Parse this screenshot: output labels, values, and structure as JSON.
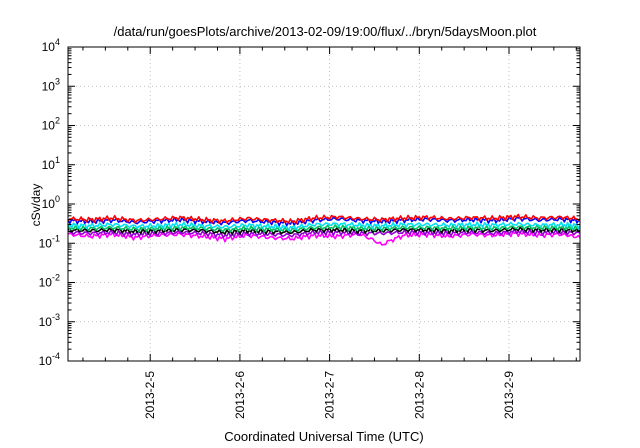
{
  "chart_data": {
    "type": "line",
    "title": "/data/run/goesPlots/archive/2013-02-09/19:00/flux/../bryn/5daysMoon.plot",
    "xlabel": "Coordinated Universal Time (UTC)",
    "ylabel": "cSv/day",
    "y_scale": "log",
    "ylim": [
      0.0001,
      10000
    ],
    "xlim": [
      "2013-02-04 02:00",
      "2013-02-09 19:00"
    ],
    "x_ticks": [
      "2013-2-5",
      "2013-2-6",
      "2013-2-7",
      "2013-2-8",
      "2013-2-9"
    ],
    "y_ticks": [
      {
        "base": "10",
        "exp": "-4",
        "value": 0.0001
      },
      {
        "base": "10",
        "exp": "-3",
        "value": 0.001
      },
      {
        "base": "10",
        "exp": "-2",
        "value": 0.01
      },
      {
        "base": "10",
        "exp": "-1",
        "value": 0.1
      },
      {
        "base": "10",
        "exp": "0",
        "value": 1
      },
      {
        "base": "10",
        "exp": "1",
        "value": 10
      },
      {
        "base": "10",
        "exp": "2",
        "value": 100
      },
      {
        "base": "10",
        "exp": "3",
        "value": 1000
      },
      {
        "base": "10",
        "exp": "4",
        "value": 10000
      }
    ],
    "grid": true,
    "legend": "none",
    "x_days": [
      0,
      0.25,
      0.5,
      0.75,
      1.0,
      1.25,
      1.5,
      1.75,
      2.0,
      2.25,
      2.5,
      2.75,
      3.0,
      3.25,
      3.5,
      3.75,
      4.0,
      4.25,
      4.5,
      4.75,
      5.0,
      5.25,
      5.5,
      5.7083
    ],
    "series": [
      {
        "color": "#ff0000",
        "values": [
          0.42,
          0.4,
          0.44,
          0.38,
          0.41,
          0.45,
          0.4,
          0.37,
          0.43,
          0.39,
          0.36,
          0.44,
          0.47,
          0.42,
          0.4,
          0.44,
          0.46,
          0.42,
          0.45,
          0.43,
          0.48,
          0.44,
          0.46,
          0.42
        ]
      },
      {
        "color": "#0000ff",
        "values": [
          0.38,
          0.36,
          0.39,
          0.34,
          0.37,
          0.4,
          0.36,
          0.33,
          0.38,
          0.35,
          0.32,
          0.39,
          0.42,
          0.38,
          0.36,
          0.39,
          0.41,
          0.38,
          0.4,
          0.38,
          0.43,
          0.39,
          0.41,
          0.37
        ]
      },
      {
        "color": "#00e0f0",
        "values": [
          0.29,
          0.28,
          0.3,
          0.27,
          0.28,
          0.3,
          0.28,
          0.26,
          0.29,
          0.27,
          0.25,
          0.3,
          0.31,
          0.29,
          0.28,
          0.3,
          0.3,
          0.29,
          0.3,
          0.29,
          0.31,
          0.29,
          0.3,
          0.28
        ]
      },
      {
        "color": "#00c060",
        "values": [
          0.25,
          0.24,
          0.25,
          0.23,
          0.24,
          0.25,
          0.24,
          0.22,
          0.24,
          0.23,
          0.22,
          0.25,
          0.26,
          0.24,
          0.24,
          0.25,
          0.25,
          0.24,
          0.25,
          0.24,
          0.26,
          0.25,
          0.25,
          0.24
        ]
      },
      {
        "color": "#000000",
        "values": [
          0.22,
          0.21,
          0.22,
          0.2,
          0.21,
          0.22,
          0.21,
          0.19,
          0.21,
          0.2,
          0.19,
          0.22,
          0.22,
          0.21,
          0.21,
          0.22,
          0.22,
          0.21,
          0.22,
          0.21,
          0.23,
          0.22,
          0.22,
          0.21
        ]
      },
      {
        "color": "#9400d3",
        "values": [
          0.19,
          0.18,
          0.19,
          0.17,
          0.18,
          0.19,
          0.18,
          0.16,
          0.18,
          0.17,
          0.16,
          0.19,
          0.19,
          0.18,
          0.18,
          0.19,
          0.19,
          0.18,
          0.19,
          0.18,
          0.2,
          0.19,
          0.19,
          0.18
        ]
      },
      {
        "color": "#ff00ff",
        "values": [
          0.17,
          0.15,
          0.17,
          0.14,
          0.16,
          0.17,
          0.15,
          0.13,
          0.16,
          0.14,
          0.13,
          0.16,
          0.15,
          0.17,
          0.09,
          0.16,
          0.17,
          0.15,
          0.17,
          0.16,
          0.18,
          0.16,
          0.17,
          0.14
        ]
      }
    ]
  }
}
